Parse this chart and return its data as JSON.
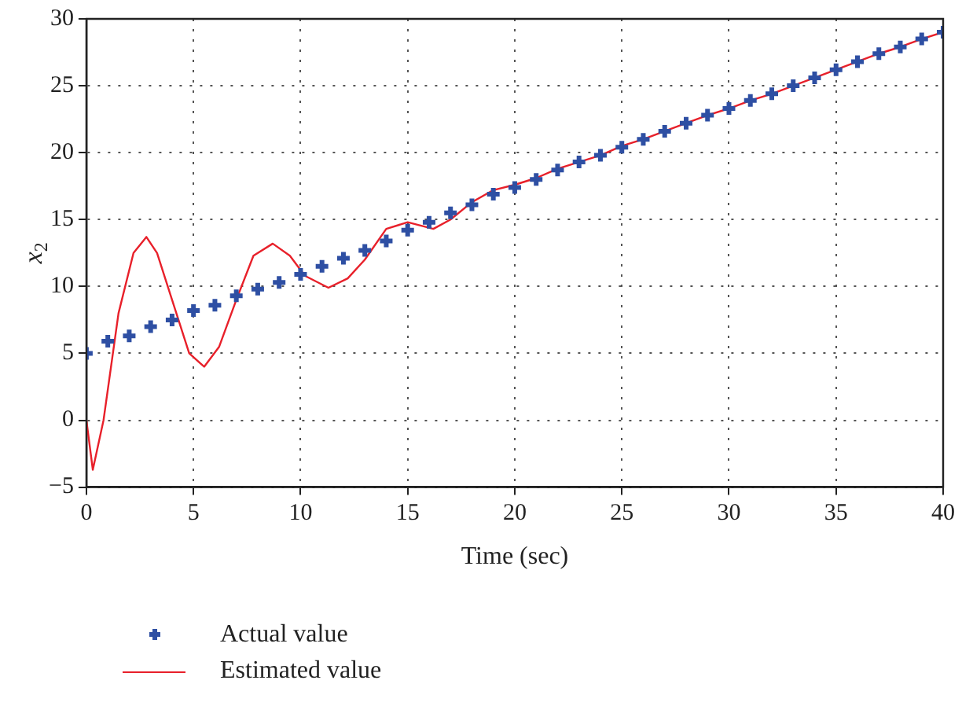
{
  "chart_data": {
    "type": "line",
    "xlabel": "Time (sec)",
    "ylabel": "x$_{2}$",
    "xlim": [
      0,
      40
    ],
    "xticks": [
      0,
      5,
      10,
      15,
      20,
      25,
      30,
      35,
      40
    ],
    "ylim": [
      -5,
      30
    ],
    "yticks": [
      -5,
      0,
      5,
      10,
      15,
      20,
      25,
      30
    ],
    "grid": true,
    "legend": "bottom left",
    "series": [
      {
        "name": "Actual value",
        "type": "scatter",
        "marker": "cross",
        "color": "#2e4fa3",
        "x": [
          0,
          1,
          2,
          3,
          4,
          5,
          6,
          7,
          8,
          9,
          10,
          11,
          12,
          13,
          14,
          15,
          16,
          17,
          18,
          19,
          20,
          21,
          22,
          23,
          24,
          25,
          26,
          27,
          28,
          29,
          30,
          31,
          32,
          33,
          34,
          35,
          36,
          37,
          38,
          39,
          40
        ],
        "values": [
          5,
          5.9,
          6.3,
          7.0,
          7.5,
          8.2,
          8.6,
          9.3,
          9.8,
          10.3,
          10.9,
          11.5,
          12.1,
          12.7,
          13.4,
          14.2,
          14.8,
          15.5,
          16.1,
          16.9,
          17.4,
          18.0,
          18.7,
          19.3,
          19.8,
          20.4,
          21.0,
          21.6,
          22.2,
          22.8,
          23.3,
          23.9,
          24.4,
          25.0,
          25.6,
          26.2,
          26.8,
          27.4,
          27.9,
          28.5,
          29
        ]
      },
      {
        "name": "Estimated value",
        "type": "line",
        "marker": "none",
        "line_style": "solid",
        "color": "#e8202a",
        "x": [
          0,
          0.3,
          0.8,
          1.5,
          2.2,
          2.8,
          3.3,
          4,
          4.8,
          5.5,
          6.2,
          7,
          7.8,
          8.7,
          9.5,
          10.2,
          11.3,
          12.2,
          13,
          14,
          15,
          16.2,
          17,
          18,
          19,
          20,
          21,
          22,
          23,
          24,
          25,
          26,
          27,
          28,
          29,
          30,
          31,
          32,
          33,
          34,
          35,
          36,
          37,
          38,
          39,
          40
        ],
        "values": [
          0,
          -3.7,
          0,
          8,
          12.5,
          13.7,
          12.5,
          9,
          5,
          4,
          5.5,
          9,
          12.3,
          13.2,
          12.3,
          10.8,
          9.9,
          10.6,
          12,
          14.3,
          14.8,
          14.3,
          15,
          16.3,
          17.2,
          17.6,
          18.1,
          18.8,
          19.3,
          19.8,
          20.5,
          21.0,
          21.6,
          22.2,
          22.8,
          23.3,
          23.9,
          24.4,
          25.0,
          25.6,
          26.2,
          26.8,
          27.4,
          27.9,
          28.5,
          29
        ]
      }
    ]
  }
}
